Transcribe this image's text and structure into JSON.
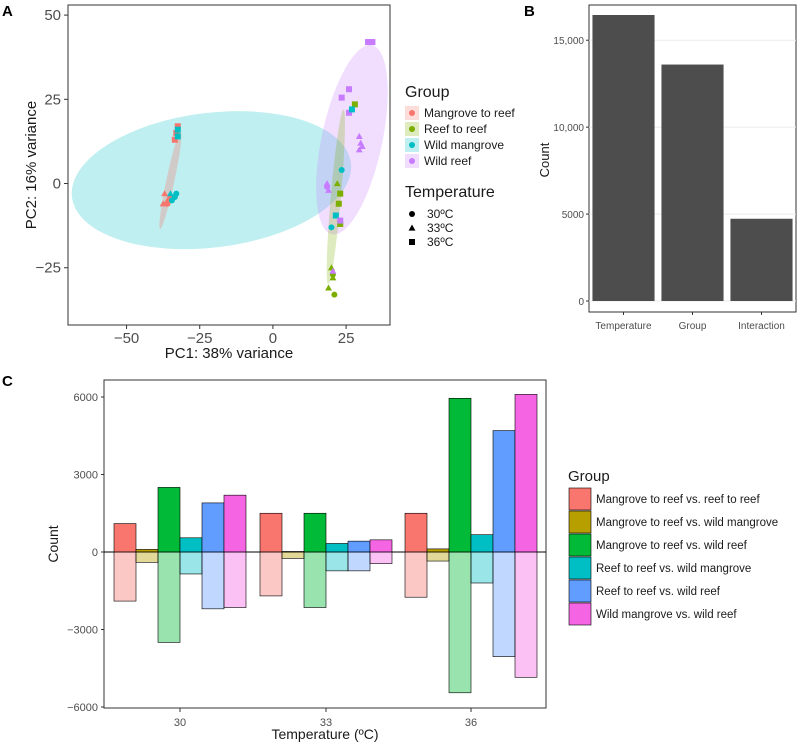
{
  "panels": {
    "A": "A",
    "B": "B",
    "C": "C"
  },
  "colors": {
    "mangrove_to_reef": "#F8766D",
    "reef_to_reef": "#7CAE00",
    "wild_mangrove": "#00BFC4",
    "wild_reef": "#C77CFF",
    "bar_gray": "#4D4D4D",
    "c_mr_rr": "#F8766D",
    "c_mr_wm": "#B79F00",
    "c_mr_wr": "#00BA38",
    "c_rr_wm": "#00BFC4",
    "c_rr_wr": "#619CFF",
    "c_wm_wr": "#F564E3"
  },
  "chart_data": [
    {
      "id": "A",
      "type": "scatter",
      "xlabel": "PC1: 38% variance",
      "ylabel": "PC2: 16% variance",
      "xticks": [
        -50,
        -25,
        0,
        25
      ],
      "yticks": [
        -25,
        0,
        25,
        50
      ],
      "tick_labels_x": [
        "−50",
        "−25",
        "0",
        "25"
      ],
      "tick_labels_y": [
        "−25",
        "0",
        "25",
        "50"
      ],
      "xlim": [
        -70,
        40
      ],
      "ylim": [
        -42,
        53
      ],
      "legend_group_title": "Group",
      "legend_temp_title": "Temperature",
      "groups": [
        {
          "key": "mangrove_to_reef",
          "label": "Mangrove to reef"
        },
        {
          "key": "reef_to_reef",
          "label": "Reef to reef"
        },
        {
          "key": "wild_mangrove",
          "label": "Wild mangrove"
        },
        {
          "key": "wild_reef",
          "label": "Wild reef"
        }
      ],
      "temperatures": [
        {
          "shape": "circle",
          "label": "30ºC"
        },
        {
          "shape": "triangle",
          "label": "33ºC"
        },
        {
          "shape": "square",
          "label": "36ºC"
        }
      ],
      "ellipses": [
        {
          "group": "wild_mangrove",
          "cx": -21,
          "cy": 1,
          "rx": 48,
          "ry": 20,
          "angle": 7,
          "opacity": 0.25
        },
        {
          "group": "wild_reef",
          "cx": 27,
          "cy": 13,
          "rx": 33,
          "ry": 9,
          "angle": 78,
          "opacity": 0.25
        },
        {
          "group": "mangrove_to_reef",
          "cx": -35,
          "cy": 1,
          "rx": 17,
          "ry": 1.2,
          "angle": 78,
          "opacity": 0.3
        },
        {
          "group": "reef_to_reef",
          "cx": 21.5,
          "cy": -4,
          "rx": 30,
          "ry": 1.5,
          "angle": 85,
          "opacity": 0.25
        }
      ],
      "points": [
        {
          "g": "mangrove_to_reef",
          "s": "square",
          "x": -32.5,
          "y": 17
        },
        {
          "g": "mangrove_to_reef",
          "s": "square",
          "x": -33,
          "y": 15
        },
        {
          "g": "mangrove_to_reef",
          "s": "square",
          "x": -33.5,
          "y": 13
        },
        {
          "g": "wild_mangrove",
          "s": "square",
          "x": -32.5,
          "y": 16
        },
        {
          "g": "wild_mangrove",
          "s": "square",
          "x": -32.5,
          "y": 14
        },
        {
          "g": "mangrove_to_reef",
          "s": "triangle",
          "x": -37,
          "y": -3
        },
        {
          "g": "mangrove_to_reef",
          "s": "triangle",
          "x": -36,
          "y": -5
        },
        {
          "g": "mangrove_to_reef",
          "s": "triangle",
          "x": -37.5,
          "y": -6
        },
        {
          "g": "mangrove_to_reef",
          "s": "circle",
          "x": -36,
          "y": -6
        },
        {
          "g": "mangrove_to_reef",
          "s": "circle",
          "x": -35,
          "y": -4
        },
        {
          "g": "wild_mangrove",
          "s": "triangle",
          "x": -35,
          "y": -3
        },
        {
          "g": "wild_mangrove",
          "s": "circle",
          "x": -33.5,
          "y": -4
        },
        {
          "g": "wild_mangrove",
          "s": "circle",
          "x": -34.5,
          "y": -5
        },
        {
          "g": "wild_mangrove",
          "s": "circle",
          "x": -33,
          "y": -3
        },
        {
          "g": "wild_reef",
          "s": "square",
          "x": 32.5,
          "y": 42
        },
        {
          "g": "wild_reef",
          "s": "square",
          "x": 33.5,
          "y": 42
        },
        {
          "g": "wild_reef",
          "s": "square",
          "x": 34,
          "y": 42
        },
        {
          "g": "wild_reef",
          "s": "square",
          "x": 26,
          "y": 28
        },
        {
          "g": "wild_reef",
          "s": "square",
          "x": 23.5,
          "y": 25.5
        },
        {
          "g": "wild_reef",
          "s": "square",
          "x": 26,
          "y": 21
        },
        {
          "g": "reef_to_reef",
          "s": "square",
          "x": 28,
          "y": 23.5
        },
        {
          "g": "wild_mangrove",
          "s": "square",
          "x": 27,
          "y": 22
        },
        {
          "g": "wild_reef",
          "s": "triangle",
          "x": 29.5,
          "y": 14
        },
        {
          "g": "wild_reef",
          "s": "triangle",
          "x": 30,
          "y": 12
        },
        {
          "g": "wild_reef",
          "s": "triangle",
          "x": 30.5,
          "y": 11
        },
        {
          "g": "wild_reef",
          "s": "triangle",
          "x": 29.5,
          "y": 10
        },
        {
          "g": "wild_reef",
          "s": "triangle",
          "x": 18.5,
          "y": 0
        },
        {
          "g": "wild_reef",
          "s": "triangle",
          "x": 19,
          "y": -2
        },
        {
          "g": "wild_reef",
          "s": "circle",
          "x": 18.5,
          "y": -1
        },
        {
          "g": "wild_mangrove",
          "s": "circle",
          "x": 23.5,
          "y": 4
        },
        {
          "g": "reef_to_reef",
          "s": "triangle",
          "x": 22,
          "y": 0
        },
        {
          "g": "reef_to_reef",
          "s": "square",
          "x": 23,
          "y": -3
        },
        {
          "g": "reef_to_reef",
          "s": "square",
          "x": 22.5,
          "y": -6
        },
        {
          "g": "reef_to_reef",
          "s": "square",
          "x": 23,
          "y": -12
        },
        {
          "g": "wild_mangrove",
          "s": "square",
          "x": 21.5,
          "y": -9.5
        },
        {
          "g": "wild_reef",
          "s": "square",
          "x": 23,
          "y": -11
        },
        {
          "g": "wild_mangrove",
          "s": "circle",
          "x": 20,
          "y": -13
        },
        {
          "g": "reef_to_reef",
          "s": "triangle",
          "x": 20,
          "y": -25
        },
        {
          "g": "reef_to_reef",
          "s": "triangle",
          "x": 20.5,
          "y": -28
        },
        {
          "g": "reef_to_reef",
          "s": "triangle",
          "x": 19,
          "y": -31
        },
        {
          "g": "reef_to_reef",
          "s": "circle",
          "x": 20.5,
          "y": -27
        },
        {
          "g": "reef_to_reef",
          "s": "circle",
          "x": 21,
          "y": -33
        },
        {
          "g": "wild_reef",
          "s": "triangle",
          "x": 20.5,
          "y": -26
        }
      ]
    },
    {
      "id": "B",
      "type": "bar",
      "categories": [
        "Temperature",
        "Group",
        "Interaction"
      ],
      "values": [
        16450,
        13600,
        4730
      ],
      "ylabel": "Count",
      "yticks": [
        0,
        5000,
        10000,
        15000
      ],
      "tick_labels_y": [
        "0",
        "5000",
        "10,000",
        "15,000"
      ],
      "ylim": [
        0,
        16450
      ]
    },
    {
      "id": "C",
      "type": "bar",
      "categories": [
        "30",
        "33",
        "36"
      ],
      "xlabel": "Temperature (ºC)",
      "ylabel": "Count",
      "yticks": [
        -6000,
        -3000,
        0,
        3000,
        6000
      ],
      "tick_labels_y": [
        "−6000",
        "−3000",
        "0",
        "3000",
        "6000"
      ],
      "ylim": [
        -6000,
        6600
      ],
      "legend_title": "Group",
      "series": [
        {
          "key": "c_mr_rr",
          "name": "Mangrove to reef  vs. reef to reef",
          "up": [
            1100,
            1500,
            1500
          ],
          "down": [
            -1900,
            -1700,
            -1750
          ]
        },
        {
          "key": "c_mr_wm",
          "name": "Mangrove to reef  vs. wild mangrove",
          "up": [
            100,
            20,
            120
          ],
          "down": [
            -400,
            -250,
            -350
          ]
        },
        {
          "key": "c_mr_wr",
          "name": "Mangrove to reef  vs. wild reef",
          "up": [
            2500,
            1500,
            5950
          ],
          "down": [
            -3500,
            -2150,
            -5450
          ]
        },
        {
          "key": "c_rr_wm",
          "name": "Reef to reef  vs. wild mangrove",
          "up": [
            550,
            330,
            670
          ],
          "down": [
            -850,
            -730,
            -1200
          ]
        },
        {
          "key": "c_rr_wr",
          "name": "Reef to reef  vs. wild reef",
          "up": [
            1900,
            420,
            4700
          ],
          "down": [
            -2200,
            -730,
            -4050
          ]
        },
        {
          "key": "c_wm_wr",
          "name": "Wild mangrove  vs. wild reef",
          "up": [
            2200,
            470,
            6100
          ],
          "down": [
            -2150,
            -450,
            -4850
          ]
        }
      ]
    }
  ]
}
